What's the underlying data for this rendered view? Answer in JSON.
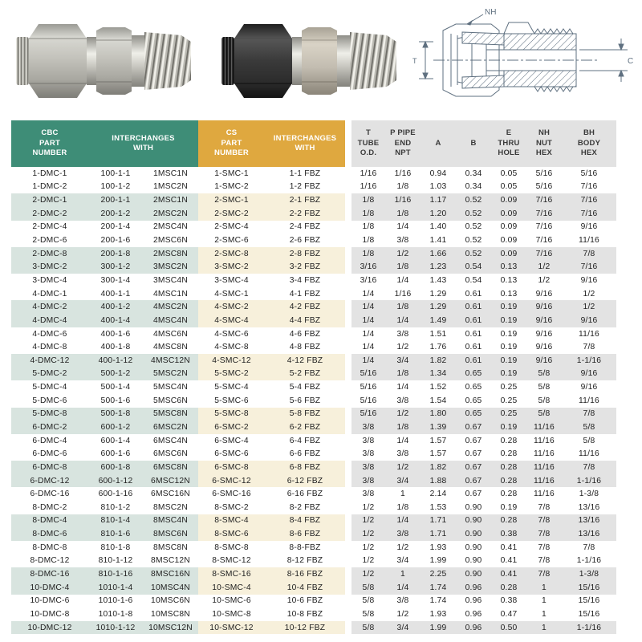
{
  "colors": {
    "header_green": "#3E8D77",
    "header_gold": "#DFA83F",
    "header_gray": "#E2E2E2",
    "row_shade_green": "#D8E4DF",
    "row_shade_cream": "#F7F0DB",
    "row_shade_gray": "#E3E3E3",
    "drawing_ink": "#5F7080"
  },
  "drawing": {
    "label_nh": "NH",
    "label_c": "C",
    "label_t": "T"
  },
  "table": {
    "header": [
      {
        "label": "CBC\nPART\nNUMBER",
        "section": "green",
        "colspan": 1
      },
      {
        "label": "INTERCHANGES\nWITH",
        "section": "green",
        "colspan": 2
      },
      {
        "label": "CS\nPART\nNUMBER",
        "section": "gold",
        "colspan": 1
      },
      {
        "label": "INTERCHANGES\nWITH",
        "section": "gold",
        "colspan": 1,
        "gap_after": true
      },
      {
        "label": "T\nTUBE\nO.D.",
        "section": "gray",
        "colspan": 1
      },
      {
        "label": "P PIPE\nEND\nNPT",
        "section": "gray",
        "colspan": 1
      },
      {
        "label": "A",
        "section": "gray",
        "colspan": 1
      },
      {
        "label": "B",
        "section": "gray",
        "colspan": 1
      },
      {
        "label": "E\nTHRU\nHOLE",
        "section": "gray",
        "colspan": 1
      },
      {
        "label": "NH\nNUT\nHEX",
        "section": "gray",
        "colspan": 1
      },
      {
        "label": "BH\nBODY\nHEX",
        "section": "gray",
        "colspan": 1
      }
    ],
    "rows": [
      {
        "shaded": false,
        "cells": [
          "1-DMC-1",
          "100-1-1",
          "1MSC1N",
          "1-SMC-1",
          "1-1 FBZ",
          "1/16",
          "1/16",
          "0.94",
          "0.34",
          "0.05",
          "5/16",
          "5/16"
        ]
      },
      {
        "shaded": false,
        "cells": [
          "1-DMC-2",
          "100-1-2",
          "1MSC2N",
          "1-SMC-2",
          "1-2 FBZ",
          "1/16",
          "1/8",
          "1.03",
          "0.34",
          "0.05",
          "5/16",
          "7/16"
        ]
      },
      {
        "shaded": true,
        "cells": [
          "2-DMC-1",
          "200-1-1",
          "2MSC1N",
          "2-SMC-1",
          "2-1 FBZ",
          "1/8",
          "1/16",
          "1.17",
          "0.52",
          "0.09",
          "7/16",
          "7/16"
        ]
      },
      {
        "shaded": true,
        "cells": [
          "2-DMC-2",
          "200-1-2",
          "2MSC2N",
          "2-SMC-2",
          "2-2 FBZ",
          "1/8",
          "1/8",
          "1.20",
          "0.52",
          "0.09",
          "7/16",
          "7/16"
        ]
      },
      {
        "shaded": false,
        "cells": [
          "2-DMC-4",
          "200-1-4",
          "2MSC4N",
          "2-SMC-4",
          "2-4 FBZ",
          "1/8",
          "1/4",
          "1.40",
          "0.52",
          "0.09",
          "7/16",
          "9/16"
        ]
      },
      {
        "shaded": false,
        "cells": [
          "2-DMC-6",
          "200-1-6",
          "2MSC6N",
          "2-SMC-6",
          "2-6 FBZ",
          "1/8",
          "3/8",
          "1.41",
          "0.52",
          "0.09",
          "7/16",
          "11/16"
        ]
      },
      {
        "shaded": true,
        "cells": [
          "2-DMC-8",
          "200-1-8",
          "2MSC8N",
          "2-SMC-8",
          "2-8 FBZ",
          "1/8",
          "1/2",
          "1.66",
          "0.52",
          "0.09",
          "7/16",
          "7/8"
        ]
      },
      {
        "shaded": true,
        "cells": [
          "3-DMC-2",
          "300-1-2",
          "3MSC2N",
          "3-SMC-2",
          "3-2 FBZ",
          "3/16",
          "1/8",
          "1.23",
          "0.54",
          "0.13",
          "1/2",
          "7/16"
        ]
      },
      {
        "shaded": false,
        "cells": [
          "3-DMC-4",
          "300-1-4",
          "3MSC4N",
          "3-SMC-4",
          "3-4 FBZ",
          "3/16",
          "1/4",
          "1.43",
          "0.54",
          "0.13",
          "1/2",
          "9/16"
        ]
      },
      {
        "shaded": false,
        "cells": [
          "4-DMC-1",
          "400-1-1",
          "4MSC1N",
          "4-SMC-1",
          "4-1 FBZ",
          "1/4",
          "1/16",
          "1.29",
          "0.61",
          "0.13",
          "9/16",
          "1/2"
        ]
      },
      {
        "shaded": true,
        "cells": [
          "4-DMC-2",
          "400-1-2",
          "4MSC2N",
          "4-SMC-2",
          "4-2 FBZ",
          "1/4",
          "1/8",
          "1.29",
          "0.61",
          "0.19",
          "9/16",
          "1/2"
        ]
      },
      {
        "shaded": true,
        "cells": [
          "4-DMC-4",
          "400-1-4",
          "4MSC4N",
          "4-SMC-4",
          "4-4 FBZ",
          "1/4",
          "1/4",
          "1.49",
          "0.61",
          "0.19",
          "9/16",
          "9/16"
        ]
      },
      {
        "shaded": false,
        "cells": [
          "4-DMC-6",
          "400-1-6",
          "4MSC6N",
          "4-SMC-6",
          "4-6 FBZ",
          "1/4",
          "3/8",
          "1.51",
          "0.61",
          "0.19",
          "9/16",
          "11/16"
        ]
      },
      {
        "shaded": false,
        "cells": [
          "4-DMC-8",
          "400-1-8",
          "4MSC8N",
          "4-SMC-8",
          "4-8 FBZ",
          "1/4",
          "1/2",
          "1.76",
          "0.61",
          "0.19",
          "9/16",
          "7/8"
        ]
      },
      {
        "shaded": true,
        "cells": [
          "4-DMC-12",
          "400-1-12",
          "4MSC12N",
          "4-SMC-12",
          "4-12 FBZ",
          "1/4",
          "3/4",
          "1.82",
          "0.61",
          "0.19",
          "9/16",
          "1-1/16"
        ]
      },
      {
        "shaded": true,
        "cells": [
          "5-DMC-2",
          "500-1-2",
          "5MSC2N",
          "5-SMC-2",
          "5-2 FBZ",
          "5/16",
          "1/8",
          "1.34",
          "0.65",
          "0.19",
          "5/8",
          "9/16"
        ]
      },
      {
        "shaded": false,
        "cells": [
          "5-DMC-4",
          "500-1-4",
          "5MSC4N",
          "5-SMC-4",
          "5-4 FBZ",
          "5/16",
          "1/4",
          "1.52",
          "0.65",
          "0.25",
          "5/8",
          "9/16"
        ]
      },
      {
        "shaded": false,
        "cells": [
          "5-DMC-6",
          "500-1-6",
          "5MSC6N",
          "5-SMC-6",
          "5-6 FBZ",
          "5/16",
          "3/8",
          "1.54",
          "0.65",
          "0.25",
          "5/8",
          "11/16"
        ]
      },
      {
        "shaded": true,
        "cells": [
          "5-DMC-8",
          "500-1-8",
          "5MSC8N",
          "5-SMC-8",
          "5-8 FBZ",
          "5/16",
          "1/2",
          "1.80",
          "0.65",
          "0.25",
          "5/8",
          "7/8"
        ]
      },
      {
        "shaded": true,
        "cells": [
          "6-DMC-2",
          "600-1-2",
          "6MSC2N",
          "6-SMC-2",
          "6-2 FBZ",
          "3/8",
          "1/8",
          "1.39",
          "0.67",
          "0.19",
          "11/16",
          "5/8"
        ]
      },
      {
        "shaded": false,
        "cells": [
          "6-DMC-4",
          "600-1-4",
          "6MSC4N",
          "6-SMC-4",
          "6-4 FBZ",
          "3/8",
          "1/4",
          "1.57",
          "0.67",
          "0.28",
          "11/16",
          "5/8"
        ]
      },
      {
        "shaded": false,
        "cells": [
          "6-DMC-6",
          "600-1-6",
          "6MSC6N",
          "6-SMC-6",
          "6-6 FBZ",
          "3/8",
          "3/8",
          "1.57",
          "0.67",
          "0.28",
          "11/16",
          "11/16"
        ]
      },
      {
        "shaded": true,
        "cells": [
          "6-DMC-8",
          "600-1-8",
          "6MSC8N",
          "6-SMC-8",
          "6-8 FBZ",
          "3/8",
          "1/2",
          "1.82",
          "0.67",
          "0.28",
          "11/16",
          "7/8"
        ]
      },
      {
        "shaded": true,
        "cells": [
          "6-DMC-12",
          "600-1-12",
          "6MSC12N",
          "6-SMC-12",
          "6-12 FBZ",
          "3/8",
          "3/4",
          "1.88",
          "0.67",
          "0.28",
          "11/16",
          "1-1/16"
        ]
      },
      {
        "shaded": false,
        "cells": [
          "6-DMC-16",
          "600-1-16",
          "6MSC16N",
          "6-SMC-16",
          "6-16 FBZ",
          "3/8",
          "1",
          "2.14",
          "0.67",
          "0.28",
          "11/16",
          "1-3/8"
        ]
      },
      {
        "shaded": false,
        "cells": [
          "8-DMC-2",
          "810-1-2",
          "8MSC2N",
          "8-SMC-2",
          "8-2 FBZ",
          "1/2",
          "1/8",
          "1.53",
          "0.90",
          "0.19",
          "7/8",
          "13/16"
        ]
      },
      {
        "shaded": true,
        "cells": [
          "8-DMC-4",
          "810-1-4",
          "8MSC4N",
          "8-SMC-4",
          "8-4 FBZ",
          "1/2",
          "1/4",
          "1.71",
          "0.90",
          "0.28",
          "7/8",
          "13/16"
        ]
      },
      {
        "shaded": true,
        "cells": [
          "8-DMC-6",
          "810-1-6",
          "8MSC6N",
          "8-SMC-6",
          "8-6 FBZ",
          "1/2",
          "3/8",
          "1.71",
          "0.90",
          "0.38",
          "7/8",
          "13/16"
        ]
      },
      {
        "shaded": false,
        "cells": [
          "8-DMC-8",
          "810-1-8",
          "8MSC8N",
          "8-SMC-8",
          "8-8-FBZ",
          "1/2",
          "1/2",
          "1.93",
          "0.90",
          "0.41",
          "7/8",
          "7/8"
        ]
      },
      {
        "shaded": false,
        "cells": [
          "8-DMC-12",
          "810-1-12",
          "8MSC12N",
          "8-SMC-12",
          "8-12 FBZ",
          "1/2",
          "3/4",
          "1.99",
          "0.90",
          "0.41",
          "7/8",
          "1-1/16"
        ]
      },
      {
        "shaded": true,
        "cells": [
          "8-DMC-16",
          "810-1-16",
          "8MSC16N",
          "8-SMC-16",
          "8-16 FBZ",
          "1/2",
          "1",
          "2.25",
          "0.90",
          "0.41",
          "7/8",
          "1-3/8"
        ]
      },
      {
        "shaded": true,
        "cells": [
          "10-DMC-4",
          "1010-1-4",
          "10MSC4N",
          "10-SMC-4",
          "10-4 FBZ",
          "5/8",
          "1/4",
          "1.74",
          "0.96",
          "0.28",
          "1",
          "15/16"
        ]
      },
      {
        "shaded": false,
        "cells": [
          "10-DMC-6",
          "1010-1-6",
          "10MSC6N",
          "10-SMC-6",
          "10-6 FBZ",
          "5/8",
          "3/8",
          "1.74",
          "0.96",
          "0.38",
          "1",
          "15/16"
        ]
      },
      {
        "shaded": false,
        "cells": [
          "10-DMC-8",
          "1010-1-8",
          "10MSC8N",
          "10-SMC-8",
          "10-8 FBZ",
          "5/8",
          "1/2",
          "1.93",
          "0.96",
          "0.47",
          "1",
          "15/16"
        ]
      },
      {
        "shaded": true,
        "cells": [
          "10-DMC-12",
          "1010-1-12",
          "10MSC12N",
          "10-SMC-12",
          "10-12 FBZ",
          "5/8",
          "3/4",
          "1.99",
          "0.96",
          "0.50",
          "1",
          "1-1/16"
        ]
      }
    ]
  }
}
